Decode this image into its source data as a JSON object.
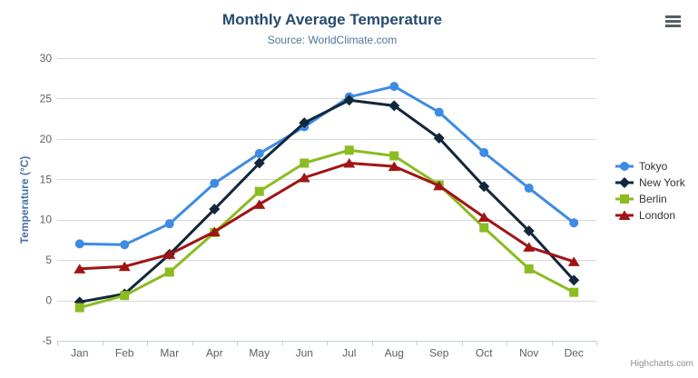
{
  "title": "Monthly Average Temperature",
  "subtitle": "Source: WorldClimate.com",
  "credits": "Highcharts.com",
  "colors": {
    "title": "#274b6d",
    "subtitle": "#4d759e",
    "axis_label": "#606060",
    "y_axis_title": "#4572a7",
    "grid_line": "#d8d8d8",
    "axis_line": "#c0d0e0",
    "legend_text": "#333333",
    "credits": "#909090",
    "menu_icon": "#555e66",
    "background": "#ffffff"
  },
  "chart_data": {
    "type": "line",
    "title": "Monthly Average Temperature",
    "subtitle": "Source: WorldClimate.com",
    "xlabel": "",
    "ylabel": "Temperature (°C)",
    "categories": [
      "Jan",
      "Feb",
      "Mar",
      "Apr",
      "May",
      "Jun",
      "Jul",
      "Aug",
      "Sep",
      "Oct",
      "Nov",
      "Dec"
    ],
    "ylim": [
      -5,
      30
    ],
    "yticks": [
      -5,
      0,
      5,
      10,
      15,
      20,
      25,
      30
    ],
    "grid": true,
    "legend_position": "right",
    "series": [
      {
        "name": "Tokyo",
        "marker": "circle",
        "color": "#3d8be4",
        "values": [
          7.0,
          6.9,
          9.5,
          14.5,
          18.2,
          21.5,
          25.2,
          26.5,
          23.3,
          18.3,
          13.9,
          9.6
        ]
      },
      {
        "name": "New York",
        "marker": "diamond",
        "color": "#12273c",
        "values": [
          -0.2,
          0.8,
          5.7,
          11.3,
          17.0,
          22.0,
          24.8,
          24.1,
          20.1,
          14.1,
          8.6,
          2.5
        ]
      },
      {
        "name": "Berlin",
        "marker": "square",
        "color": "#8bbc21",
        "values": [
          -0.9,
          0.6,
          3.5,
          8.4,
          13.5,
          17.0,
          18.6,
          17.9,
          14.3,
          9.0,
          3.9,
          1.0
        ]
      },
      {
        "name": "London",
        "marker": "triangle",
        "color": "#a01414",
        "values": [
          3.9,
          4.2,
          5.7,
          8.5,
          11.9,
          15.2,
          17.0,
          16.6,
          14.2,
          10.3,
          6.6,
          4.8
        ]
      }
    ]
  }
}
